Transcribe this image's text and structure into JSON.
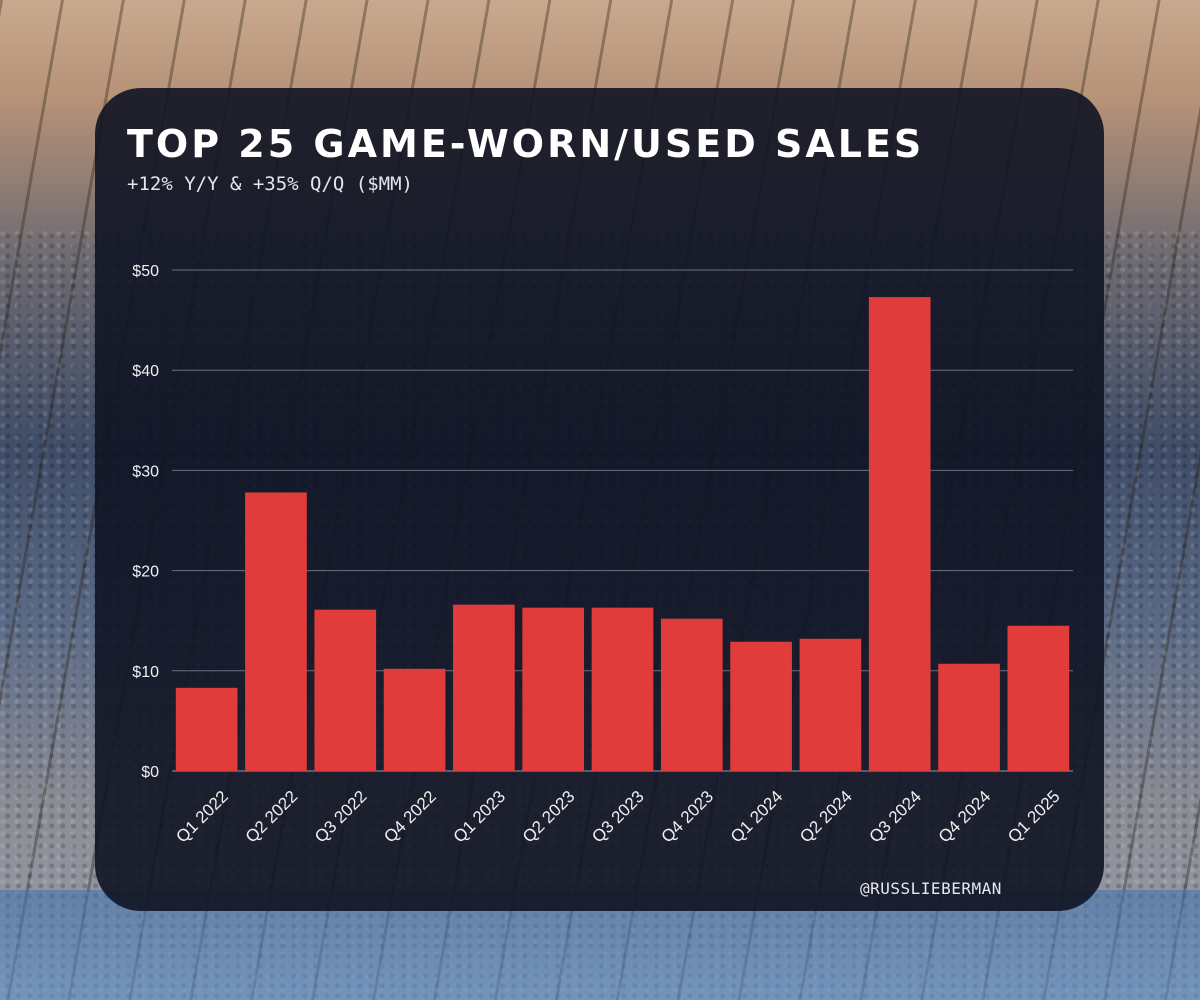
{
  "chart_data": {
    "type": "bar",
    "title": "TOP 25 GAME-WORN/USED SALES",
    "subtitle": "+12% Y/Y & +35% Q/Q ($MM)",
    "categories": [
      "Q1 2022",
      "Q2 2022",
      "Q3 2022",
      "Q4 2022",
      "Q1 2023",
      "Q2 2023",
      "Q3 2023",
      "Q4 2023",
      "Q1 2024",
      "Q2 2024",
      "Q3 2024",
      "Q4 2024",
      "Q1 2025"
    ],
    "values": [
      8.3,
      27.8,
      16.1,
      10.2,
      16.6,
      16.3,
      16.3,
      15.2,
      12.9,
      13.2,
      47.3,
      10.7,
      14.5
    ],
    "ylim": [
      0,
      50
    ],
    "yticks": [
      0,
      10,
      20,
      30,
      40,
      50
    ],
    "ytick_labels": [
      "$0",
      "$10",
      "$20",
      "$30",
      "$40",
      "$50"
    ],
    "xlabel": "",
    "ylabel": "",
    "grid": true,
    "bar_color": "#e03c3c",
    "grid_color": "#6a6f80",
    "credit": "@RUSSLIEBERMAN"
  }
}
